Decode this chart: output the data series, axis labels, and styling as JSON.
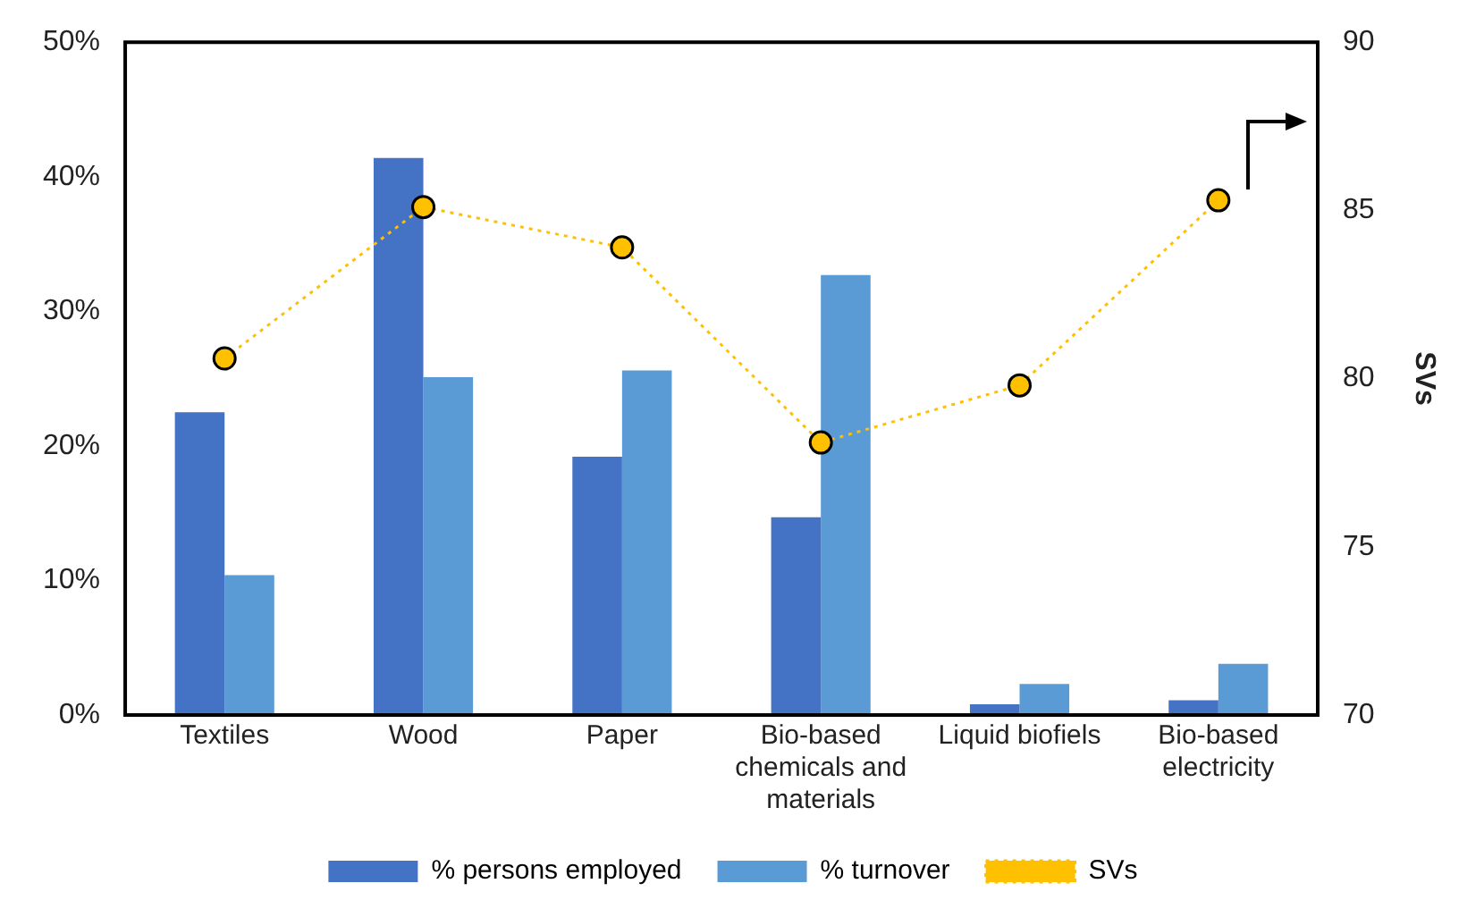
{
  "chart_data": {
    "type": "bar",
    "categories": [
      "Textiles",
      "Wood",
      "Paper",
      "Bio-based chemicals and materials",
      "Liquid biofiels",
      "Bio-based electricity"
    ],
    "series": [
      {
        "name": "% persons employed",
        "color": "#4472c4",
        "values": [
          22.5,
          41.4,
          19.2,
          14.7,
          0.8,
          1.1
        ]
      },
      {
        "name": "% turnover",
        "color": "#5b9bd5",
        "values": [
          10.4,
          25.1,
          25.6,
          32.7,
          2.3,
          3.8
        ]
      },
      {
        "name": "SVs",
        "type": "line",
        "axis": "y2",
        "color": "#ffc000",
        "line_style": "dotted",
        "marker": "circle",
        "values": [
          80.6,
          85.1,
          83.9,
          78.1,
          79.8,
          85.3
        ]
      }
    ],
    "ylim": [
      0,
      50
    ],
    "yticks": [
      {
        "value": 0,
        "label": "0%"
      },
      {
        "value": 10,
        "label": "10%"
      },
      {
        "value": 20,
        "label": "20%"
      },
      {
        "value": 30,
        "label": "30%"
      },
      {
        "value": 40,
        "label": "40%"
      },
      {
        "value": 50,
        "label": "50%"
      }
    ],
    "y2lim": [
      70,
      90
    ],
    "y2ticks": [
      70,
      75,
      80,
      85,
      90
    ],
    "y2label": "SVs",
    "grid": false,
    "legend": "bottom"
  }
}
